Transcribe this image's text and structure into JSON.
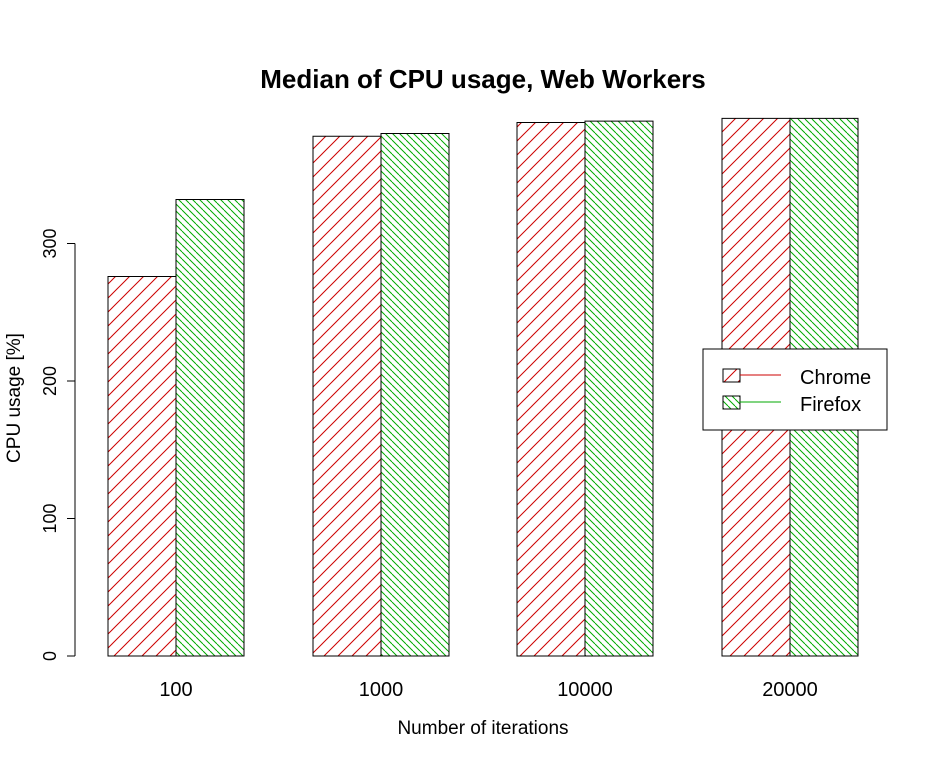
{
  "chart_data": {
    "type": "bar",
    "title": "Median of CPU usage, Web Workers",
    "xlabel": "Number of iterations",
    "ylabel": "CPU usage [%]",
    "categories": [
      "100",
      "1000",
      "10000",
      "20000"
    ],
    "series": [
      {
        "name": "Chrome",
        "values": [
          276,
          378,
          388,
          391
        ],
        "color": "#cc0000",
        "hatch": "diagonal-45"
      },
      {
        "name": "Firefox",
        "values": [
          332,
          380,
          389,
          391
        ],
        "color": "#00aa00",
        "hatch": "diagonal-135"
      }
    ],
    "ylim": [
      0,
      390
    ],
    "yticks": [
      "0",
      "100",
      "200",
      "300"
    ],
    "grid": false,
    "legend": {
      "position": "right",
      "entries": [
        "Chrome",
        "Firefox"
      ]
    }
  }
}
